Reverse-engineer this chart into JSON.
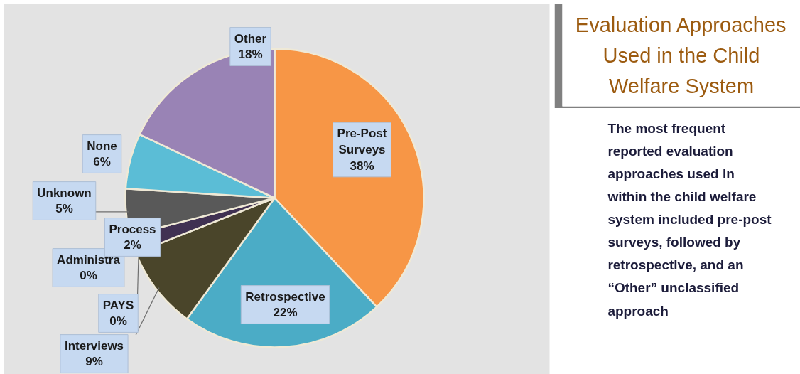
{
  "chart_data": {
    "type": "pie",
    "title": "Evaluation Approaches Used in the Child Welfare System",
    "categories": [
      "Pre-Post Surveys",
      "Retrospective",
      "Interviews",
      "PAYS",
      "Administra",
      "Process",
      "Unknown",
      "None",
      "Other"
    ],
    "values": [
      38,
      22,
      9,
      0,
      0,
      2,
      5,
      6,
      18
    ],
    "value_labels": [
      "38%",
      "22%",
      "9%",
      "0%",
      "0%",
      "2%",
      "5%",
      "6%",
      "18%"
    ],
    "colors": [
      "#f79646",
      "#4bacc6",
      "#4a452a",
      "#1f497d",
      "#c0504d",
      "#403152",
      "#595959",
      "#5bbdd6",
      "#9983b5"
    ],
    "annotations": [
      "The most frequent reported evaluation approaches used in within the child welfare system included pre-post surveys, followed by retrospective, and an “Other” unclassified approach"
    ]
  }
}
